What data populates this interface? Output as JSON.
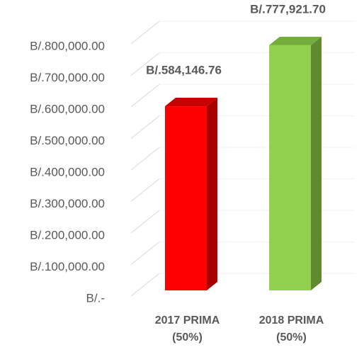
{
  "chart_data": {
    "type": "bar3d",
    "categories": [
      "2017 PRIMA (50%)",
      "2018 PRIMA (50%)"
    ],
    "values": [
      584146.76,
      777921.7
    ],
    "value_labels": [
      "B/.584,146.76",
      "B/.777,921.70"
    ],
    "colors": [
      "#ff0000",
      "#92d050"
    ],
    "side_colors": [
      "#a80000",
      "#5f8a2f"
    ],
    "top_colors": [
      "#c80000",
      "#74ad3c"
    ],
    "ylim": [
      0,
      800000
    ],
    "yticks": [
      {
        "value": 0,
        "label": "B/.-"
      },
      {
        "value": 100000,
        "label": "B/.100,000.00"
      },
      {
        "value": 200000,
        "label": "B/.200,000.00"
      },
      {
        "value": 300000,
        "label": "B/.300,000.00"
      },
      {
        "value": 400000,
        "label": "B/.400,000.00"
      },
      {
        "value": 500000,
        "label": "B/.500,000.00"
      },
      {
        "value": 600000,
        "label": "B/.600,000.00"
      },
      {
        "value": 700000,
        "label": "B/.700,000.00"
      },
      {
        "value": 800000,
        "label": "B/.800,000.00"
      }
    ],
    "grid": true
  }
}
